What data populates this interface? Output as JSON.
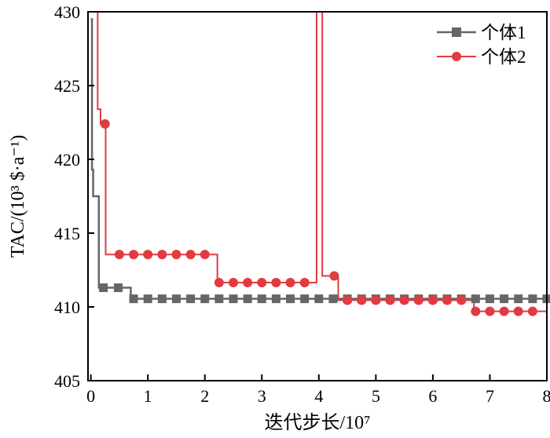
{
  "chart_data": {
    "type": "line",
    "title": "",
    "xlabel": "迭代步长/10⁷",
    "ylabel": "TAC/(10³ $·a⁻¹)",
    "xlim": [
      -0.05,
      8
    ],
    "ylim": [
      405,
      430
    ],
    "x_ticks": [
      0,
      1,
      2,
      3,
      4,
      5,
      6,
      7,
      8
    ],
    "y_ticks": [
      405,
      410,
      415,
      420,
      425,
      430
    ],
    "grid": false,
    "legend_position": "top-right",
    "series": [
      {
        "name": "个体1",
        "color": "#666666",
        "marker": "square",
        "step_x": [
          0.0,
          0.02,
          0.02,
          0.04,
          0.04,
          0.14,
          0.14,
          0.21,
          0.21,
          0.7,
          0.7,
          8.0
        ],
        "step_y": [
          429.5,
          429.5,
          419.3,
          419.3,
          417.5,
          417.5,
          411.3,
          411.3,
          411.3,
          411.3,
          410.55,
          410.55
        ],
        "marker_x": [
          0.22,
          0.48,
          0.75,
          1.0,
          1.25,
          1.5,
          1.75,
          2.0,
          2.25,
          2.5,
          2.75,
          3.0,
          3.25,
          3.5,
          3.75,
          4.0,
          4.25,
          4.5,
          4.75,
          5.0,
          5.25,
          5.5,
          5.75,
          6.0,
          6.25,
          6.5,
          6.75,
          7.0,
          7.25,
          7.5,
          7.75,
          8.0
        ],
        "marker_y": [
          411.3,
          411.3,
          410.55,
          410.55,
          410.55,
          410.55,
          410.55,
          410.55,
          410.55,
          410.55,
          410.55,
          410.55,
          410.55,
          410.55,
          410.55,
          410.55,
          410.55,
          410.55,
          410.55,
          410.55,
          410.55,
          410.55,
          410.55,
          410.55,
          410.55,
          410.55,
          410.55,
          410.55,
          410.55,
          410.55,
          410.55,
          410.55
        ]
      },
      {
        "name": "个体2",
        "color": "#e03b41",
        "marker": "circle",
        "step_x": [
          0.12,
          0.12,
          0.17,
          0.17,
          0.26,
          0.26,
          2.22,
          2.22,
          3.96,
          3.96,
          4.06,
          4.06,
          4.34,
          4.34,
          6.72,
          6.72,
          8.0
        ],
        "step_y": [
          430,
          423.4,
          423.4,
          422.4,
          422.4,
          413.55,
          413.55,
          411.65,
          411.65,
          430,
          430,
          412.1,
          412.1,
          410.45,
          410.45,
          409.7,
          409.7
        ],
        "marker_x": [
          0.25,
          0.5,
          0.75,
          1.0,
          1.25,
          1.5,
          1.75,
          2.0,
          2.25,
          2.5,
          2.75,
          3.0,
          3.25,
          3.5,
          3.75,
          4.27,
          4.5,
          4.75,
          5.0,
          5.25,
          5.5,
          5.75,
          6.0,
          6.25,
          6.5,
          6.75,
          7.0,
          7.25,
          7.5,
          7.75
        ],
        "marker_y": [
          422.4,
          413.55,
          413.55,
          413.55,
          413.55,
          413.55,
          413.55,
          413.55,
          411.65,
          411.65,
          411.65,
          411.65,
          411.65,
          411.65,
          411.65,
          412.1,
          410.45,
          410.45,
          410.45,
          410.45,
          410.45,
          410.45,
          410.45,
          410.45,
          410.45,
          409.7,
          409.7,
          409.7,
          409.7,
          409.7
        ]
      }
    ]
  }
}
